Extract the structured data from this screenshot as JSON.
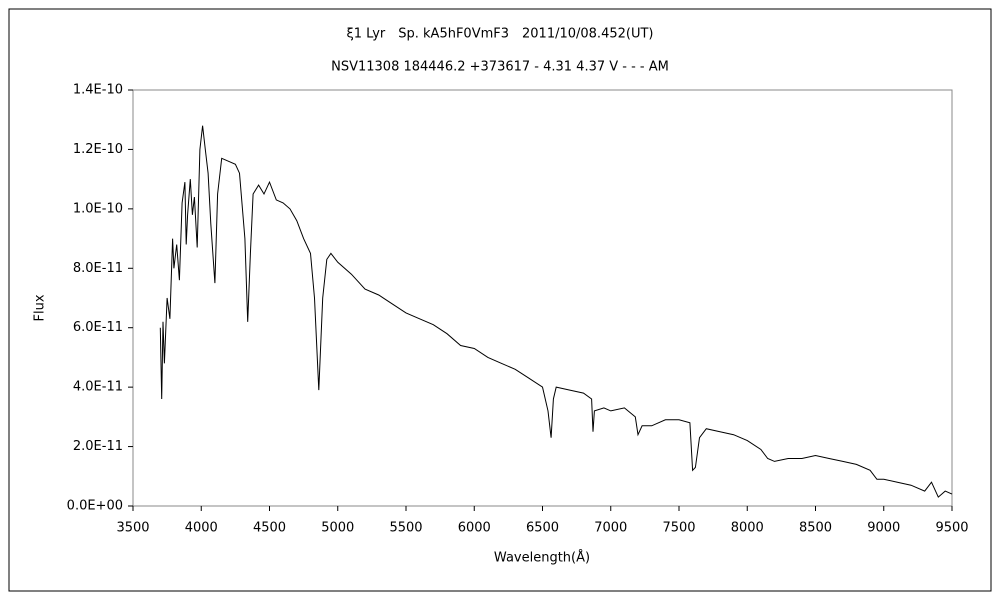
{
  "chart_data": {
    "type": "line",
    "title": "ξ1 Lyr　Sp. kA5hF0VmF3　2011/10/08.452(UT)",
    "subtitle": "NSV11308 184446.2 +373617 - 4.31 4.37 V - - - AM",
    "x_label": "Wavelength(Å)",
    "y_label": "Flux",
    "xlim": [
      3500,
      9500
    ],
    "xticks": [
      3500,
      4000,
      4500,
      5000,
      5500,
      6000,
      6500,
      7000,
      7500,
      8000,
      8500,
      9000,
      9500
    ],
    "ylim": [
      0,
      1.4e-10
    ],
    "yticks": [
      {
        "value": 0,
        "label": "0.0E+00"
      },
      {
        "value": 2e-11,
        "label": "2.0E-11"
      },
      {
        "value": 4e-11,
        "label": "4.0E-11"
      },
      {
        "value": 6e-11,
        "label": "6.0E-11"
      },
      {
        "value": 8e-11,
        "label": "8.0E-11"
      },
      {
        "value": 1e-10,
        "label": "1.0E-10"
      },
      {
        "value": 1.2e-10,
        "label": "1.2E-10"
      },
      {
        "value": 1.4e-10,
        "label": "1.4E-10"
      }
    ],
    "color": "#000000",
    "x": [
      3700,
      3710,
      3720,
      3730,
      3750,
      3770,
      3790,
      3800,
      3820,
      3840,
      3860,
      3880,
      3890,
      3900,
      3920,
      3935,
      3950,
      3970,
      3990,
      4010,
      4030,
      4050,
      4070,
      4100,
      4120,
      4150,
      4200,
      4250,
      4280,
      4320,
      4340,
      4360,
      4380,
      4420,
      4460,
      4500,
      4550,
      4600,
      4650,
      4700,
      4750,
      4800,
      4830,
      4861,
      4890,
      4920,
      4950,
      5000,
      5100,
      5200,
      5300,
      5400,
      5500,
      5600,
      5700,
      5800,
      5900,
      6000,
      6100,
      6200,
      6300,
      6400,
      6500,
      6540,
      6563,
      6580,
      6600,
      6700,
      6800,
      6860,
      6870,
      6880,
      6950,
      7000,
      7100,
      7180,
      7200,
      7230,
      7300,
      7400,
      7500,
      7580,
      7600,
      7620,
      7650,
      7700,
      7800,
      7900,
      8000,
      8100,
      8150,
      8200,
      8300,
      8400,
      8500,
      8600,
      8700,
      8800,
      8900,
      8950,
      9000,
      9100,
      9200,
      9300,
      9350,
      9400,
      9450,
      9500
    ],
    "values": [
      6e-11,
      3.6e-11,
      6.2e-11,
      4.8e-11,
      7e-11,
      6.3e-11,
      9e-11,
      8e-11,
      8.8e-11,
      7.6e-11,
      1.02e-10,
      1.09e-10,
      8.8e-11,
      9.8e-11,
      1.1e-10,
      9.8e-11,
      1.04e-10,
      8.7e-11,
      1.2e-10,
      1.28e-10,
      1.2e-10,
      1.12e-10,
      9.5e-11,
      7.5e-11,
      1.05e-10,
      1.17e-10,
      1.16e-10,
      1.15e-10,
      1.12e-10,
      9e-11,
      6.2e-11,
      8.5e-11,
      1.05e-10,
      1.08e-10,
      1.05e-10,
      1.09e-10,
      1.03e-10,
      1.02e-10,
      1e-10,
      9.6e-11,
      9e-11,
      8.5e-11,
      7e-11,
      3.9e-11,
      7e-11,
      8.3e-11,
      8.5e-11,
      8.2e-11,
      7.8e-11,
      7.3e-11,
      7.1e-11,
      6.8e-11,
      6.5e-11,
      6.3e-11,
      6.1e-11,
      5.8e-11,
      5.4e-11,
      5.3e-11,
      5e-11,
      4.8e-11,
      4.6e-11,
      4.3e-11,
      4e-11,
      3.2e-11,
      2.3e-11,
      3.6e-11,
      4e-11,
      3.9e-11,
      3.8e-11,
      3.6e-11,
      2.5e-11,
      3.2e-11,
      3.3e-11,
      3.2e-11,
      3.3e-11,
      3e-11,
      2.4e-11,
      2.7e-11,
      2.7e-11,
      2.9e-11,
      2.9e-11,
      2.8e-11,
      1.2e-11,
      1.3e-11,
      2.3e-11,
      2.6e-11,
      2.5e-11,
      2.4e-11,
      2.2e-11,
      1.9e-11,
      1.6e-11,
      1.5e-11,
      1.6e-11,
      1.6e-11,
      1.7e-11,
      1.6e-11,
      1.5e-11,
      1.4e-11,
      1.2e-11,
      9e-12,
      9e-12,
      8e-12,
      7e-12,
      5e-12,
      8e-12,
      3e-12,
      5e-12,
      4e-12
    ]
  }
}
